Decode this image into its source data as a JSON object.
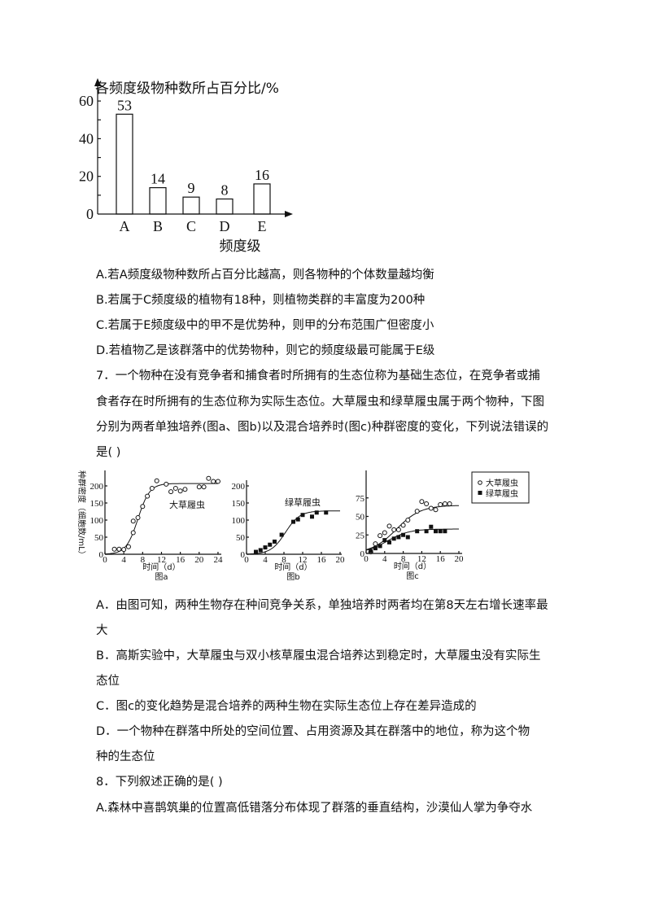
{
  "chart_data": [
    {
      "type": "bar",
      "title": "各频度级物种数所占百分比/%",
      "xlabel": "频度级",
      "categories": [
        "A",
        "B",
        "C",
        "D",
        "E"
      ],
      "values": [
        53,
        14,
        9,
        8,
        16
      ],
      "yticks": [
        "0",
        "20",
        "40",
        "60"
      ],
      "ylim": [
        0,
        60
      ],
      "grid": false
    },
    {
      "type": "scatter",
      "panel": "图a",
      "ylabel": "种群密度（细胞数/mL）",
      "xlabel": "时间（d）",
      "annotation": "大草履虫",
      "xlim": [
        0,
        24
      ],
      "ylim": [
        0,
        200
      ],
      "xticks": [
        "0",
        "4",
        "8",
        "12",
        "16",
        "20",
        "24"
      ],
      "yticks": [
        "0",
        "50",
        "100",
        "150",
        "200"
      ],
      "series": [
        {
          "name": "大草履虫",
          "marker": "circle",
          "fit": "logistic",
          "x": [
            2,
            3,
            4,
            5,
            6,
            6,
            7,
            8,
            9,
            10,
            11,
            13,
            14,
            15,
            16,
            17,
            20,
            21,
            22,
            23,
            24
          ],
          "y": [
            15,
            15,
            14,
            22,
            63,
            97,
            107,
            140,
            170,
            193,
            215,
            205,
            183,
            193,
            185,
            190,
            197,
            197,
            222,
            213,
            213
          ]
        }
      ]
    },
    {
      "type": "scatter",
      "panel": "图b",
      "xlabel": "时间（d）",
      "annotation": "绿草履虫",
      "xlim": [
        0,
        20
      ],
      "ylim": [
        0,
        250
      ],
      "xticks": [
        "0",
        "4",
        "8",
        "12",
        "16",
        "20"
      ],
      "yticks": [
        "0",
        "50",
        "100",
        "150",
        "200"
      ],
      "series": [
        {
          "name": "绿草履虫",
          "marker": "square",
          "fit": "logistic",
          "x": [
            2,
            3,
            4,
            5,
            6,
            7.5,
            10,
            11,
            12,
            14,
            15,
            17
          ],
          "y": [
            7,
            12,
            20,
            28,
            37,
            57,
            95,
            102,
            115,
            110,
            122,
            122
          ]
        }
      ]
    },
    {
      "type": "scatter",
      "panel": "图c",
      "xlabel": "时间（d）",
      "xlim": [
        0,
        20
      ],
      "ylim": [
        0,
        95
      ],
      "xticks": [
        "0",
        "4",
        "8",
        "12",
        "16",
        "20"
      ],
      "yticks": [
        "0",
        "25",
        "50",
        "75"
      ],
      "legend": "top-right",
      "series": [
        {
          "name": "大草履虫",
          "marker": "circle",
          "fit": "logistic",
          "x": [
            1,
            2,
            3,
            4,
            5,
            6,
            7,
            8,
            9,
            11,
            12,
            13,
            14,
            15,
            16,
            17,
            18
          ],
          "y": [
            2,
            13,
            24,
            28,
            37,
            32,
            32,
            38,
            45,
            57,
            70,
            67,
            61,
            59,
            66,
            67,
            67
          ]
        },
        {
          "name": "绿草履虫",
          "marker": "square",
          "fit": "logistic",
          "x": [
            1,
            2,
            3,
            4,
            5,
            6,
            7,
            8,
            9,
            11,
            13,
            14,
            15,
            16,
            17
          ],
          "y": [
            3,
            7,
            10,
            18,
            15,
            20,
            22,
            25,
            22,
            30,
            30,
            36,
            30,
            30,
            30
          ]
        }
      ]
    }
  ],
  "text": {
    "q6_options": [
      "A.若A频度级物种数所占百分比越高，则各物种的个体数量越均衡",
      "B.若属于C频度级的植物有18种，则植物类群的丰富度为200种",
      "C.若属于E频度级中的甲不是优势种，则甲的分布范围广但密度小",
      "D.若植物乙是该群落中的优势物种，则它的频度级最可能属于E级"
    ],
    "q7_stem": [
      "7．一个物种在没有竞争者和捕食者时所拥有的生态位称为基础生态位，在竞争者或捕",
      "食者存在时所拥有的生态位称为实际生态位。大草履虫和绿草履虫属于两个物种，下图",
      "分别为两者单独培养(图a、图b)以及混合培养时(图c)种群密度的变化，下列说法错误的",
      "是(    )"
    ],
    "q7_options": [
      "A．由图可知，两种生物存在种间竞争关系，单独培养时两者均在第8天左右增长速率最",
      "大",
      "B．高斯实验中，大草履虫与双小核草履虫混合培养达到稳定时，大草履虫没有实际生",
      "态位",
      "C．图c的变化趋势是混合培养的两种生物在实际生态位上存在差异造成的",
      "D．一个物种在群落中所处的空间位置、占用资源及其在群落中的地位，称为这个物",
      "种的生态位"
    ],
    "q8_stem": "8．下列叙述正确的是(    )",
    "q8_options": [
      "A.森林中喜鹊筑巢的位置高低错落分布体现了群落的垂直结构，沙漠仙人掌为争夺水"
    ]
  }
}
